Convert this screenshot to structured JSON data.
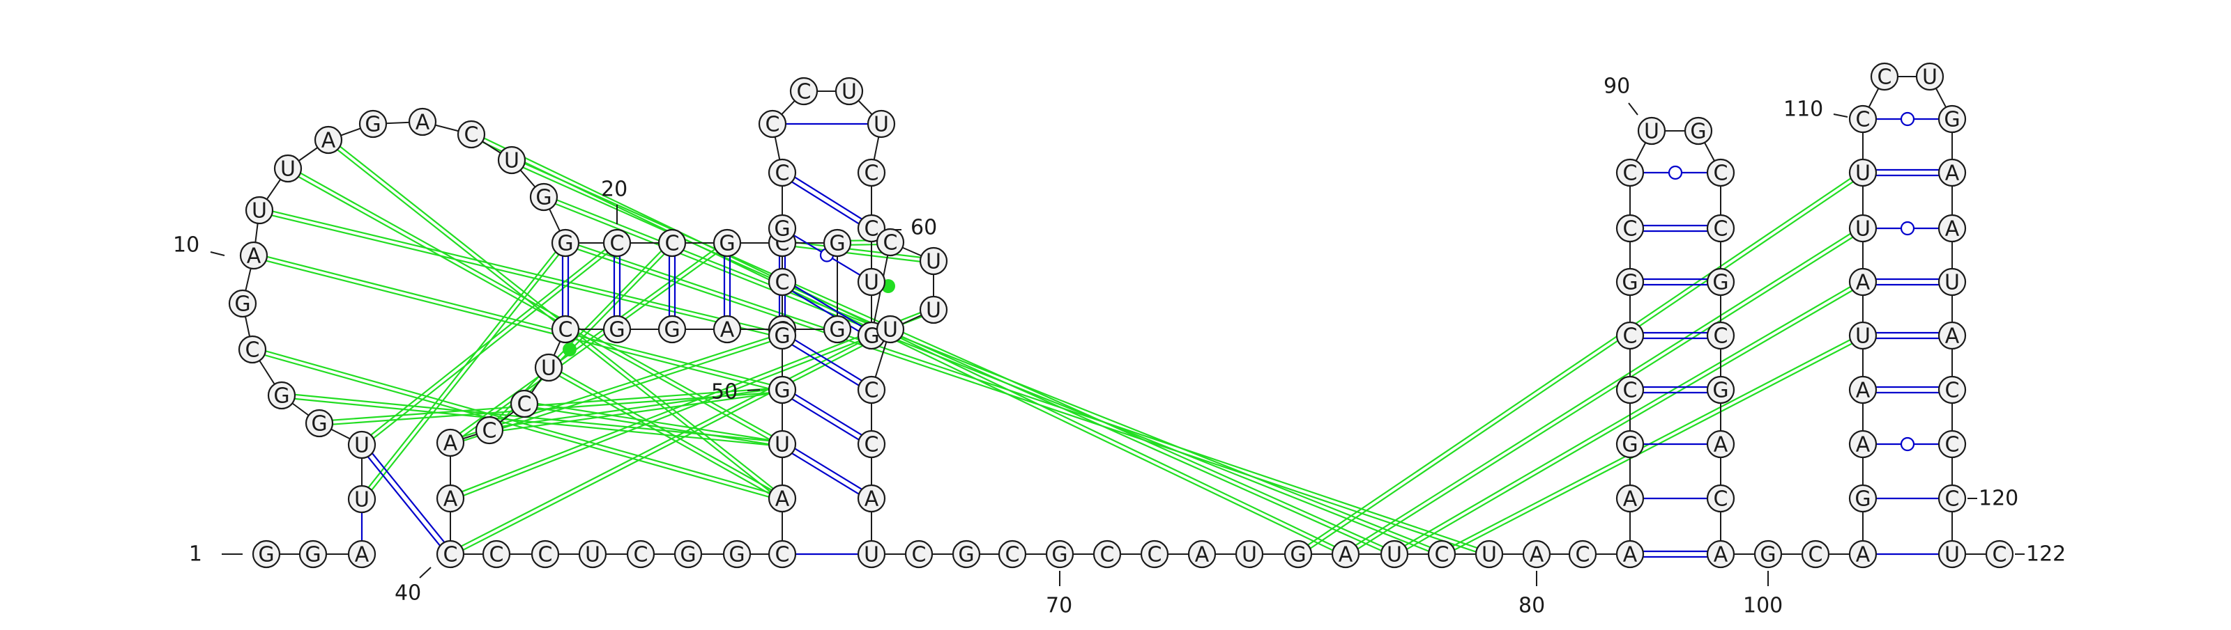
{
  "colors": {
    "canonical_pair": "#0000cc",
    "wobble_pair": "#0000cc",
    "pseudoknot": "#22dd22",
    "backbone": "#1a1a1a",
    "nucleotide_fill": "#f2f2f2"
  },
  "sequence": [
    "G",
    "G",
    "A",
    "U",
    "U",
    "G",
    "G",
    "C",
    "G",
    "A",
    "U",
    "U",
    "A",
    "G",
    "A",
    "C",
    "U",
    "G",
    "G",
    "C",
    "C",
    "G",
    "C",
    "G",
    "G",
    "G",
    "A",
    "G",
    "G",
    "C",
    "U",
    "C",
    "C",
    "A",
    "A",
    "C",
    "C",
    "C",
    "U",
    "C",
    "G",
    "G",
    "C",
    "A",
    "U",
    "G",
    "G",
    "C",
    "G",
    "C",
    "C",
    "C",
    "U",
    "U",
    "C",
    "C",
    "U",
    "G",
    "C",
    "U",
    "U",
    "U",
    "C",
    "C",
    "A",
    "U",
    "C",
    "G",
    "C",
    "G",
    "C",
    "C",
    "A",
    "U",
    "G",
    "A",
    "U",
    "C",
    "U",
    "A",
    "C",
    "A",
    "A",
    "G",
    "C",
    "C",
    "G",
    "C",
    "C",
    "U",
    "G",
    "C",
    "C",
    "G",
    "C",
    "G",
    "A",
    "C",
    "A",
    "G",
    "C",
    "A",
    "G",
    "A",
    "A",
    "U",
    "A",
    "U",
    "U",
    "C",
    "C",
    "U",
    "G",
    "A",
    "A",
    "U",
    "A",
    "C",
    "C",
    "C",
    "U",
    "C"
  ],
  "position_labels": [
    {
      "text": "1"
    },
    {
      "text": "10"
    },
    {
      "text": "20"
    },
    {
      "text": "40"
    },
    {
      "text": "50"
    },
    {
      "text": "60"
    },
    {
      "text": "70"
    },
    {
      "text": "80"
    },
    {
      "text": "90"
    },
    {
      "text": "100"
    },
    {
      "text": "110"
    },
    {
      "text": "120"
    },
    {
      "text": "122"
    }
  ]
}
